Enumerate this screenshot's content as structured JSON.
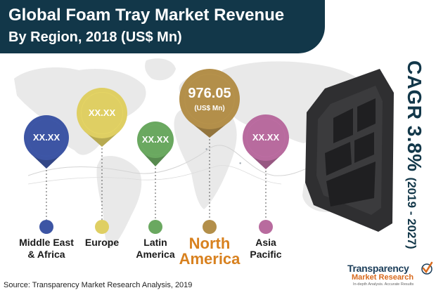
{
  "title": {
    "line1": "Global Foam Tray Market Revenue",
    "line2": "By Region, 2018 (US$ Mn)"
  },
  "cagr": {
    "label": "CAGR 3.8%",
    "period": "(2019 - 2027)"
  },
  "source": "Source: Transparency Market Research Analysis, 2019",
  "logo": {
    "name": "Transparency",
    "sub": "Market Research",
    "tagline": "In-depth Analysis. Accurate Results"
  },
  "colors": {
    "title_bg": "#123749",
    "mea": "#3d55a4",
    "europe": "#dfcf63",
    "latin_america": "#6aa860",
    "north_america": "#b38f4a",
    "asia_pacific": "#b86b9e",
    "north_america_label": "#d8811f"
  },
  "chart_data": {
    "type": "bar",
    "title": "Global Foam Tray Market Revenue By Region, 2018 (US$ Mn)",
    "categories": [
      "Middle East & Africa",
      "Europe",
      "Latin America",
      "North America",
      "Asia Pacific"
    ],
    "category_lines": [
      [
        "Middle East",
        "& Africa"
      ],
      [
        "Europe"
      ],
      [
        "Latin",
        "America"
      ],
      [
        "North",
        "America"
      ],
      [
        "Asia",
        "Pacific"
      ]
    ],
    "values": [
      "XX.XX",
      "XX.XX",
      "XX.XX",
      "976.05",
      "XX.XX"
    ],
    "value_unit": "(US$ Mn)",
    "highlight": "North America",
    "icon": "foam-tray-image"
  }
}
